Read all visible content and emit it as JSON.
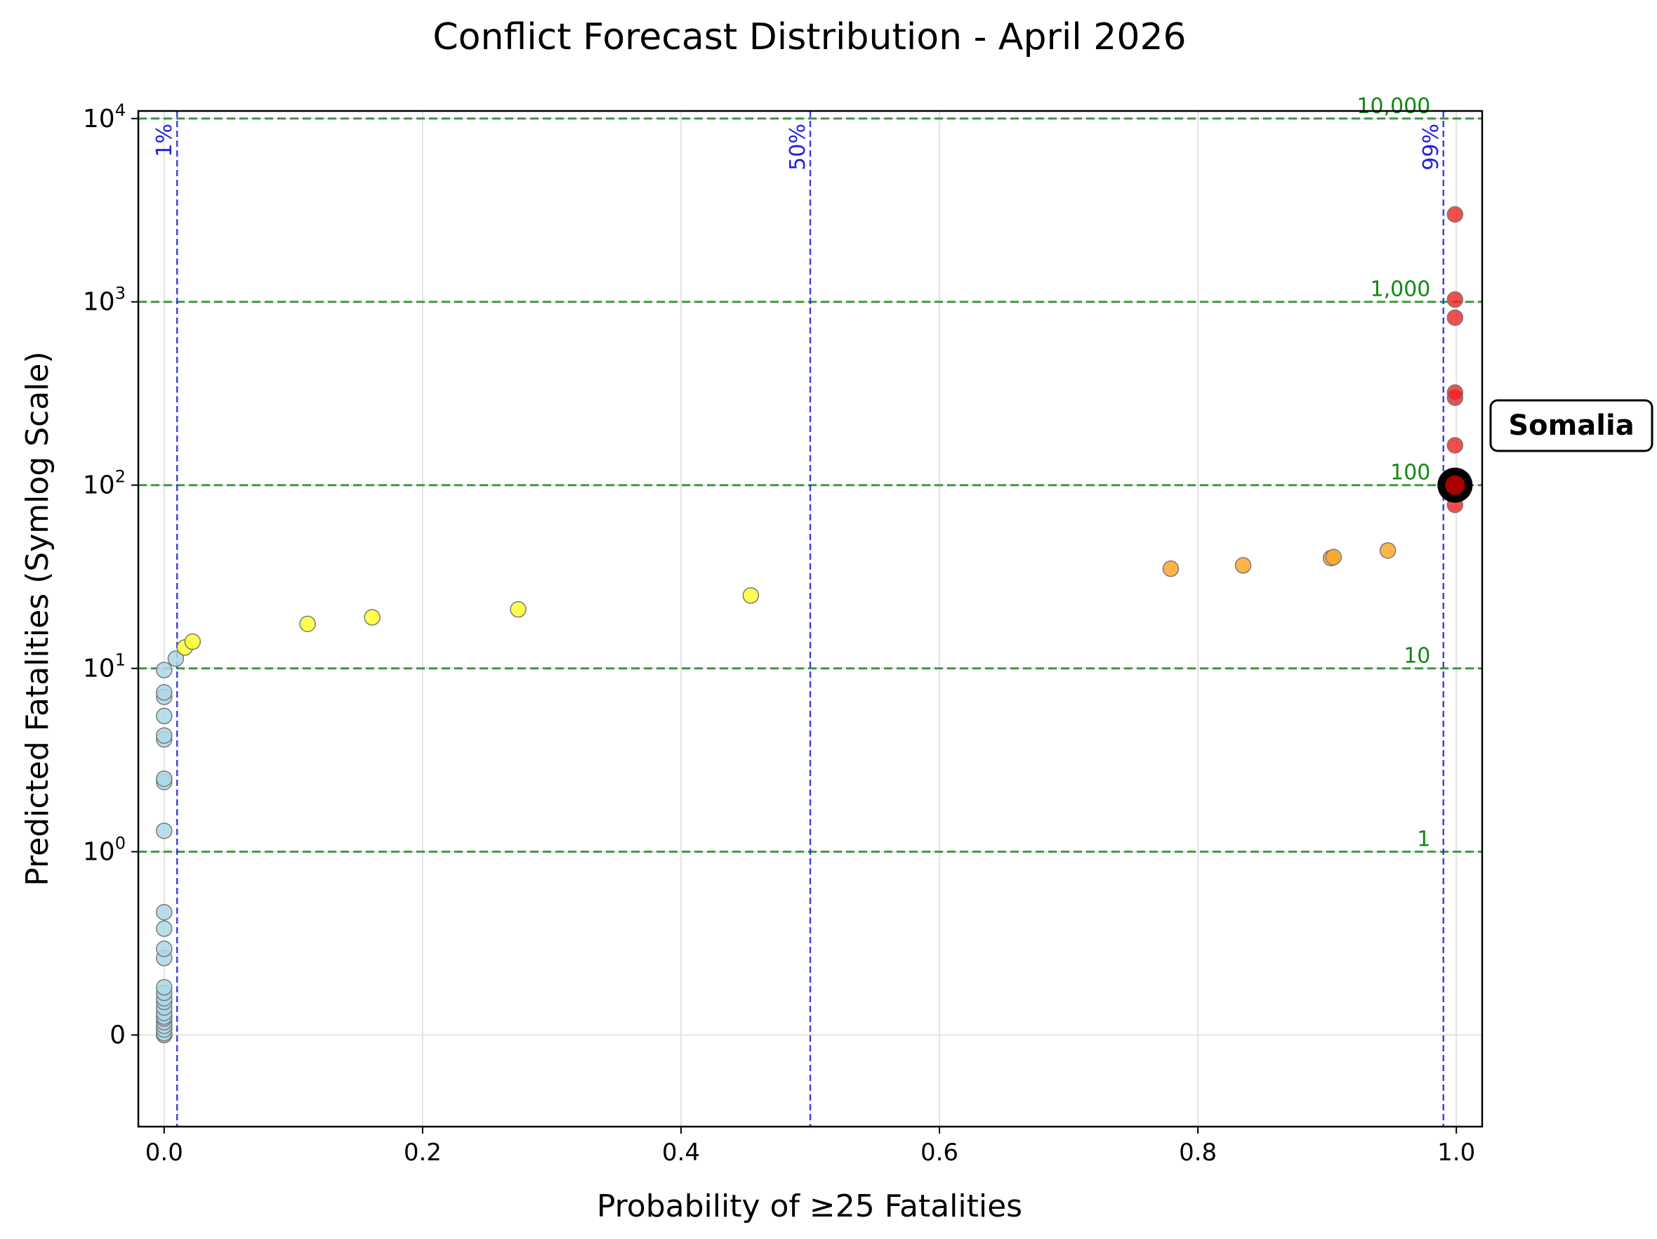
{
  "chart_data": {
    "type": "scatter",
    "title": "Conflict Forecast Distribution - April 2026",
    "xlabel": "Probability of ≥25 Fatalities",
    "ylabel": "Predicted Fatalities (Symlog Scale)",
    "xlim": [
      -0.02,
      1.02
    ],
    "y_scale": "symlog",
    "ylim": [
      -0.5,
      11000
    ],
    "grid": true,
    "x_ticks": [
      {
        "value": 0.0,
        "label": "0.0"
      },
      {
        "value": 0.2,
        "label": "0.2"
      },
      {
        "value": 0.4,
        "label": "0.4"
      },
      {
        "value": 0.6,
        "label": "0.6"
      },
      {
        "value": 0.8,
        "label": "0.8"
      },
      {
        "value": 1.0,
        "label": "1.0"
      }
    ],
    "y_ticks": [
      {
        "value": 0,
        "base": "0",
        "exp": ""
      },
      {
        "value": 1,
        "base": "10",
        "exp": "0"
      },
      {
        "value": 10,
        "base": "10",
        "exp": "1"
      },
      {
        "value": 100,
        "base": "10",
        "exp": "2"
      },
      {
        "value": 1000,
        "base": "10",
        "exp": "3"
      },
      {
        "value": 10000,
        "base": "10",
        "exp": "4"
      }
    ],
    "threshold_lines": [
      {
        "value": 1,
        "label": "1"
      },
      {
        "value": 10,
        "label": "10"
      },
      {
        "value": 100,
        "label": "100"
      },
      {
        "value": 1000,
        "label": "1,000"
      },
      {
        "value": 10000,
        "label": "10,000"
      }
    ],
    "probability_lines": [
      {
        "value": 0.01,
        "label": "1%"
      },
      {
        "value": 0.5,
        "label": "50%"
      },
      {
        "value": 0.99,
        "label": "99%"
      }
    ],
    "colors": {
      "low": "#add8e6",
      "moderate": "#ffff33",
      "high": "#ffa62b",
      "very_high": "#ee2222",
      "threshold": "#228b22",
      "probability_line": "#2222dd",
      "threshold_label": "#118811"
    },
    "points": [
      {
        "x": 0.0,
        "y": 0.0,
        "c": "low"
      },
      {
        "x": 0.0,
        "y": 0.0,
        "c": "low"
      },
      {
        "x": 0.0,
        "y": 0.01,
        "c": "low"
      },
      {
        "x": 0.0,
        "y": 0.03,
        "c": "low"
      },
      {
        "x": 0.0,
        "y": 0.05,
        "c": "low"
      },
      {
        "x": 0.0,
        "y": 0.07,
        "c": "low"
      },
      {
        "x": 0.0,
        "y": 0.09,
        "c": "low"
      },
      {
        "x": 0.0,
        "y": 0.1,
        "c": "low"
      },
      {
        "x": 0.0,
        "y": 0.12,
        "c": "low"
      },
      {
        "x": 0.0,
        "y": 0.15,
        "c": "low"
      },
      {
        "x": 0.0,
        "y": 0.18,
        "c": "low"
      },
      {
        "x": 0.0,
        "y": 0.2,
        "c": "low"
      },
      {
        "x": 0.0,
        "y": 0.23,
        "c": "low"
      },
      {
        "x": 0.0,
        "y": 0.26,
        "c": "low"
      },
      {
        "x": 0.0,
        "y": 0.42,
        "c": "low"
      },
      {
        "x": 0.0,
        "y": 0.47,
        "c": "low"
      },
      {
        "x": 0.0,
        "y": 0.58,
        "c": "low"
      },
      {
        "x": 0.0,
        "y": 0.67,
        "c": "low"
      },
      {
        "x": 0.0,
        "y": 1.3,
        "c": "low"
      },
      {
        "x": 0.0,
        "y": 2.4,
        "c": "low"
      },
      {
        "x": 0.0,
        "y": 2.5,
        "c": "low"
      },
      {
        "x": 0.0,
        "y": 4.1,
        "c": "low"
      },
      {
        "x": 0.0,
        "y": 4.3,
        "c": "low"
      },
      {
        "x": 0.0,
        "y": 5.5,
        "c": "low"
      },
      {
        "x": 0.0,
        "y": 7.0,
        "c": "low"
      },
      {
        "x": 0.0,
        "y": 7.4,
        "c": "low"
      },
      {
        "x": 0.0,
        "y": 9.8,
        "c": "low"
      },
      {
        "x": 0.009,
        "y": 11.3,
        "c": "low"
      },
      {
        "x": 0.016,
        "y": 13.0,
        "c": "moderate"
      },
      {
        "x": 0.022,
        "y": 14.0,
        "c": "moderate"
      },
      {
        "x": 0.111,
        "y": 17.5,
        "c": "moderate"
      },
      {
        "x": 0.161,
        "y": 19.0,
        "c": "moderate"
      },
      {
        "x": 0.274,
        "y": 21.0,
        "c": "moderate"
      },
      {
        "x": 0.454,
        "y": 25.0,
        "c": "moderate"
      },
      {
        "x": 0.779,
        "y": 35.0,
        "c": "high"
      },
      {
        "x": 0.835,
        "y": 36.5,
        "c": "high"
      },
      {
        "x": 0.903,
        "y": 40.0,
        "c": "high"
      },
      {
        "x": 0.905,
        "y": 40.5,
        "c": "high"
      },
      {
        "x": 0.947,
        "y": 44.0,
        "c": "high"
      },
      {
        "x": 0.999,
        "y": 78.0,
        "c": "very_high"
      },
      {
        "x": 0.999,
        "y": 100.0,
        "c": "very_high"
      },
      {
        "x": 0.999,
        "y": 165.0,
        "c": "very_high"
      },
      {
        "x": 0.999,
        "y": 300.0,
        "c": "very_high"
      },
      {
        "x": 0.999,
        "y": 320.0,
        "c": "very_high"
      },
      {
        "x": 0.999,
        "y": 820.0,
        "c": "very_high"
      },
      {
        "x": 0.999,
        "y": 1030.0,
        "c": "very_high"
      },
      {
        "x": 0.999,
        "y": 3000.0,
        "c": "very_high"
      }
    ],
    "highlight": {
      "label": "Somalia",
      "x": 0.999,
      "y": 100.0
    }
  }
}
